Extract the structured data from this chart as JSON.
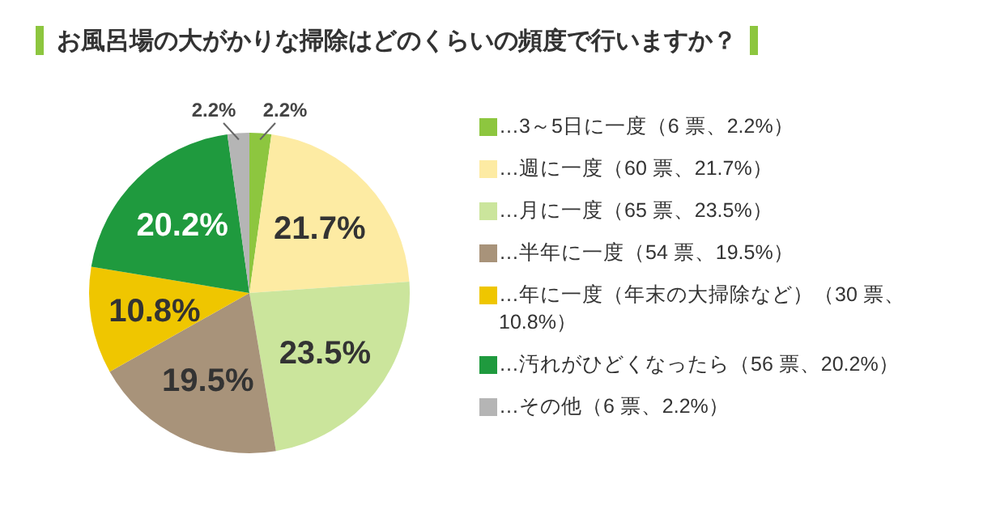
{
  "chart_data": {
    "type": "pie",
    "title": "お風呂場の大がかりな掃除はどのくらいの頻度で行いますか？",
    "categories": [
      "…3～5日に一度（6 票、2.2%）",
      "…週に一度（60 票、21.7%）",
      "…月に一度（65 票、23.5%）",
      "…半年に一度（54 票、19.5%）",
      "…年に一度（年末の大掃除など）（30 票、10.8%）",
      "…汚れがひどくなったら（56 票、20.2%）",
      "…その他（6 票、2.2%）"
    ],
    "values": [
      2.2,
      21.7,
      23.5,
      19.5,
      10.8,
      20.2,
      2.2
    ],
    "colors": [
      "#8dc63f",
      "#fdeba3",
      "#cbe59c",
      "#a8937a",
      "#efc600",
      "#1f9a3e",
      "#b5b5b5"
    ],
    "value_labels": [
      "2.2%",
      "21.7%",
      "23.5%",
      "19.5%",
      "10.8%",
      "20.2%",
      "2.2%"
    ],
    "legend": "right"
  }
}
